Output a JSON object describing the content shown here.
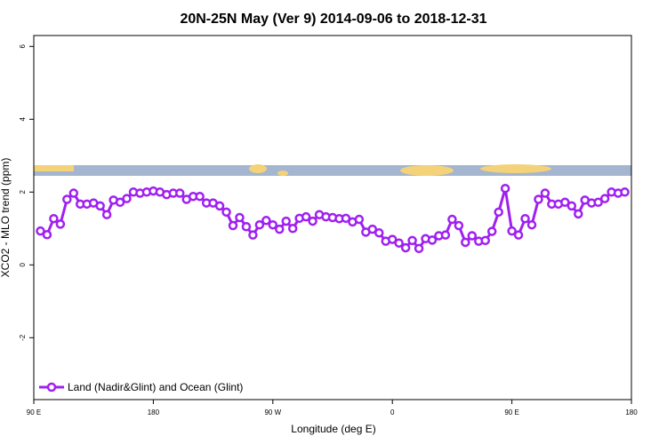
{
  "chart_data": {
    "type": "line",
    "title": "20N-25N May (Ver 9)   2014-09-06 to 2018-12-31",
    "x_label": "Longitude (deg E)",
    "y_label": "XCO2 - MLO trend (ppm)",
    "x": [
      95,
      100,
      105,
      110,
      115,
      120,
      125,
      130,
      135,
      140,
      145,
      150,
      155,
      160,
      165,
      170,
      175,
      180,
      185,
      190,
      195,
      200,
      205,
      210,
      215,
      220,
      225,
      230,
      235,
      240,
      245,
      250,
      255,
      260,
      265,
      270,
      275,
      280,
      285,
      290,
      295,
      300,
      305,
      310,
      315,
      320,
      325,
      330,
      335,
      340,
      345,
      350,
      355,
      360,
      365,
      370,
      375,
      380,
      385,
      390,
      395,
      400,
      405,
      410,
      415,
      420,
      425,
      430,
      435,
      440,
      445,
      450,
      455,
      460,
      465,
      470,
      475,
      480,
      485,
      490,
      495,
      500,
      505,
      510,
      515,
      520,
      525,
      530,
      535
    ],
    "series": [
      {
        "name": "Land (Nadir&Glint) and Ocean (Glint)",
        "color": "#a020f0",
        "values": [
          0.93,
          0.83,
          1.27,
          1.12,
          1.8,
          1.97,
          1.67,
          1.67,
          1.7,
          1.62,
          1.38,
          1.78,
          1.72,
          1.82,
          2.0,
          1.97,
          2.0,
          2.03,
          2.0,
          1.93,
          1.97,
          1.97,
          1.8,
          1.88,
          1.88,
          1.7,
          1.7,
          1.62,
          1.45,
          1.08,
          1.3,
          1.05,
          0.82,
          1.1,
          1.22,
          1.1,
          0.98,
          1.2,
          1.0,
          1.28,
          1.32,
          1.2,
          1.38,
          1.32,
          1.3,
          1.27,
          1.28,
          1.18,
          1.25,
          0.9,
          0.98,
          0.88,
          0.65,
          0.7,
          0.6,
          0.47,
          0.67,
          0.45,
          0.72,
          0.68,
          0.8,
          0.82,
          1.25,
          1.08,
          0.62,
          0.8,
          0.65,
          0.67,
          0.92,
          1.45,
          2.1,
          0.93,
          0.82,
          1.27,
          1.1,
          1.8,
          1.97,
          1.67,
          1.67,
          1.72,
          1.62,
          1.4,
          1.78,
          1.7,
          1.72,
          1.82,
          2.0,
          1.97,
          2.0
        ]
      }
    ],
    "xlim": [
      90,
      540
    ],
    "xticks": [
      {
        "value": 90,
        "label": "90 E"
      },
      180,
      {
        "value": 270,
        "label": "90 W"
      },
      {
        "value": 360,
        "label": "0"
      },
      {
        "value": 450,
        "label": "90 E"
      },
      {
        "value": 540,
        "label": "180"
      }
    ],
    "ylim": [
      -3.7,
      6.3
    ],
    "yticks": [
      -2,
      0,
      2,
      4,
      6
    ],
    "legend": "bottom-left"
  }
}
